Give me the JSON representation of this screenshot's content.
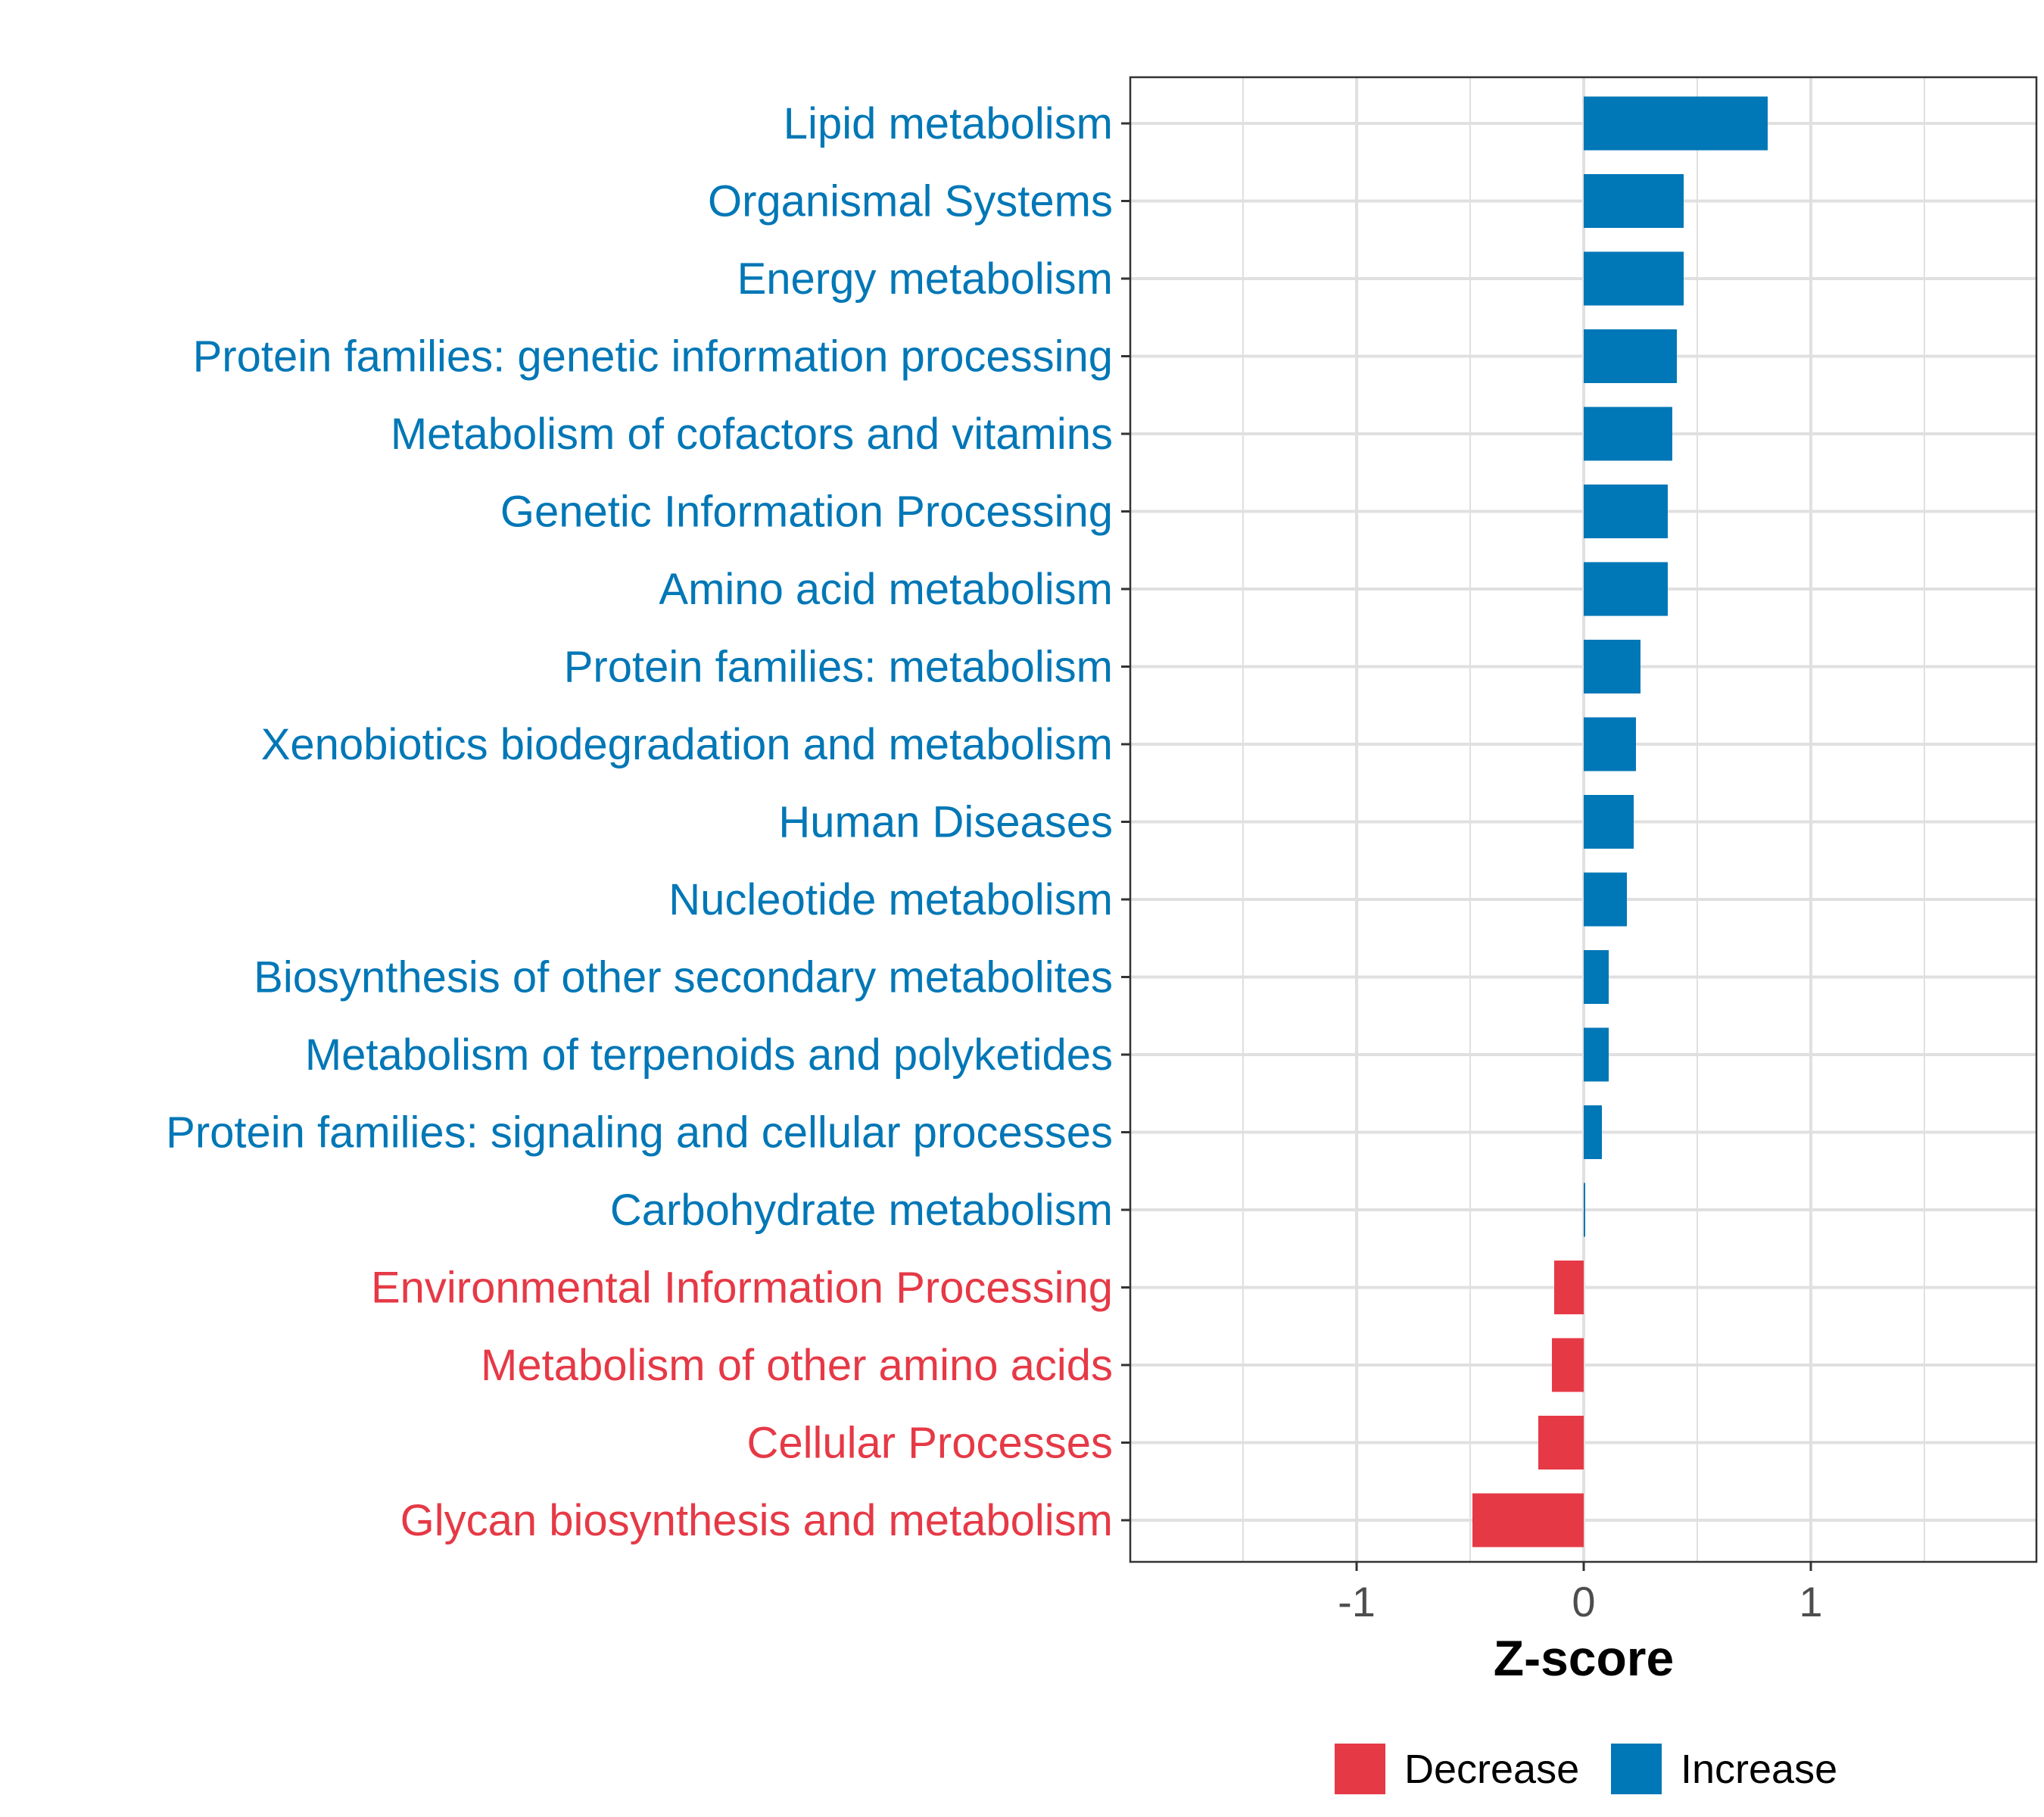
{
  "chart_data": {
    "type": "bar",
    "orientation": "horizontal",
    "xlabel": "Z-score",
    "ylabel": "",
    "xlim": [
      -2.0,
      2.0
    ],
    "x_ticks": [
      -1,
      0,
      1
    ],
    "x_tick_labels": [
      "-1",
      "0",
      "1"
    ],
    "grid": true,
    "legend_position": "bottom",
    "legend": [
      {
        "label": "Decrease",
        "color": "#E63946"
      },
      {
        "label": "Increase",
        "color": "#0077B6"
      }
    ],
    "colors": {
      "increase": "#0077B6",
      "decrease": "#E63946"
    },
    "categories": [
      "Lipid metabolism",
      "Organismal Systems",
      "Energy metabolism",
      "Protein families: genetic information processing",
      "Metabolism of cofactors and vitamins",
      "Genetic Information Processing",
      "Amino acid metabolism",
      "Protein families: metabolism",
      "Xenobiotics biodegradation and metabolism",
      "Human Diseases",
      "Nucleotide metabolism",
      "Biosynthesis of other secondary metabolites",
      "Metabolism of terpenoids and polyketides",
      "Protein families: signaling and cellular processes",
      "Carbohydrate metabolism",
      "Environmental Information Processing",
      "Metabolism of other amino acids",
      "Cellular Processes",
      "Glycan biosynthesis and metabolism"
    ],
    "values": [
      0.81,
      0.44,
      0.44,
      0.41,
      0.39,
      0.37,
      0.37,
      0.25,
      0.23,
      0.22,
      0.19,
      0.11,
      0.11,
      0.08,
      0.005,
      -0.13,
      -0.14,
      -0.2,
      -0.49
    ]
  }
}
